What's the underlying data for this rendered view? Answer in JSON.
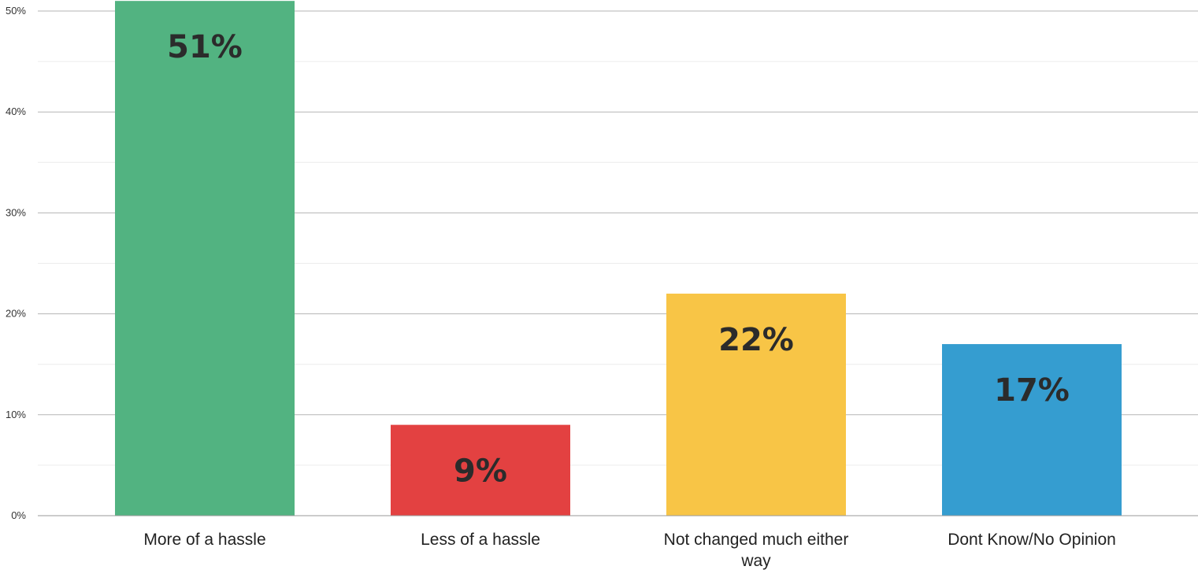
{
  "chart_data": {
    "type": "bar",
    "categories": [
      [
        "More of a hassle"
      ],
      [
        "Less of a hassle"
      ],
      [
        "Not changed much either",
        "way"
      ],
      [
        "Dont Know/No Opinion"
      ]
    ],
    "values": [
      51,
      9,
      22,
      17
    ],
    "value_labels": [
      "51%",
      "9%",
      "22%",
      "17%"
    ],
    "colors": [
      "#52b381",
      "#e34141",
      "#f8c546",
      "#359dd0"
    ],
    "ylim": [
      0,
      50
    ],
    "y_ticks": [
      {
        "value": 0,
        "label": "0%"
      },
      {
        "value": 10,
        "label": "10%"
      },
      {
        "value": 20,
        "label": "20%"
      },
      {
        "value": 30,
        "label": "30%"
      },
      {
        "value": 40,
        "label": "40%"
      },
      {
        "value": 50,
        "label": "50%"
      }
    ],
    "minor_gridlines": [
      5,
      15,
      25,
      35,
      45
    ],
    "grid": true,
    "xlabel": "",
    "ylabel": "",
    "title": ""
  }
}
